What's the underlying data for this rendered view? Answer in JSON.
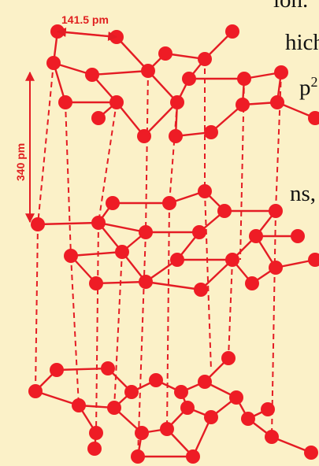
{
  "colors": {
    "background": "#fbf1c8",
    "atom": "#ee1c25",
    "bond": "#e41c24",
    "interlayer": "#e41c24"
  },
  "labels": {
    "bond_length": "141.5 pm",
    "layer_spacing": "340 pm"
  },
  "clipped_text": {
    "line1": "hich",
    "line2_prefix": "p",
    "line2_sup": "2",
    "line3": "ns,",
    "top_fragment": "ion."
  }
}
